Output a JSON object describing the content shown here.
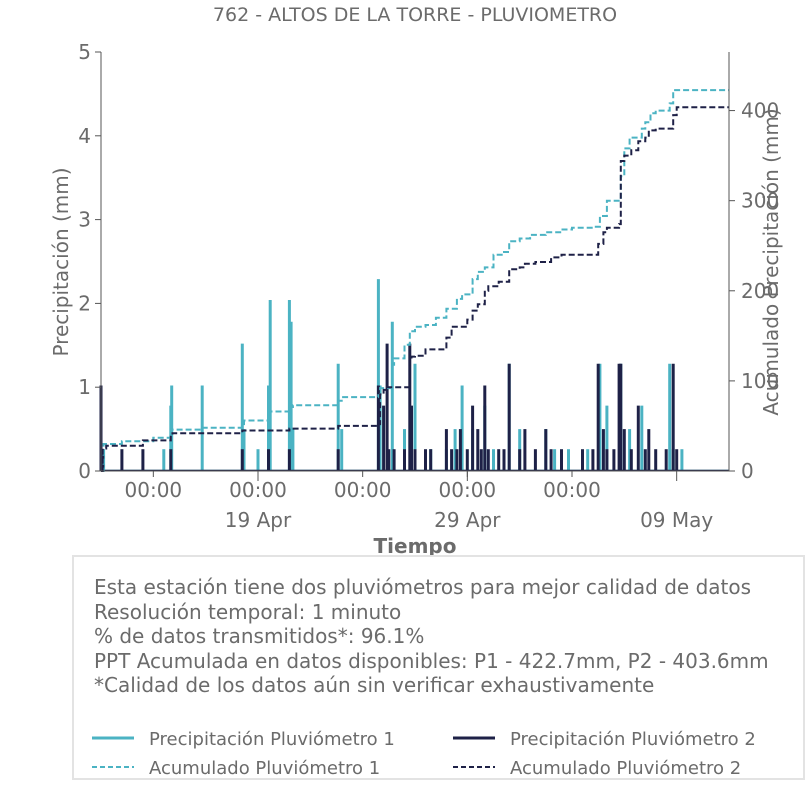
{
  "chart_data": {
    "type": "bar+line",
    "title": "762 - ALTOS DE LA TORRE - PLUVIOMETRO",
    "xlabel": "Tiempo",
    "ylabel_left": "Precipitación (mm)",
    "ylabel_right": "Acumulado Precipitación (mm)",
    "ylim_left": [
      0,
      5
    ],
    "ylim_right": [
      0,
      465
    ],
    "yticks_left": [
      "0",
      "1",
      "2",
      "3",
      "4",
      "5"
    ],
    "yticks_right": [
      "0",
      "100",
      "200",
      "300",
      "400"
    ],
    "x_range_days": [
      "2023-04-11T12:00",
      "2023-05-11T12:00"
    ],
    "x_time_ticks": [
      "00:00",
      "00:00",
      "00:00",
      "00:00",
      "00:00"
    ],
    "x_date_ticks": [
      "19 Apr",
      "29 Apr",
      "09 May"
    ],
    "series": [
      {
        "name": "Precipitación Pluviómetro 1",
        "kind": "bar",
        "color": "#4bb3c3",
        "points": [
          [
            "2023-04-11T15:00",
            0.26
          ],
          [
            "2023-04-14T12:00",
            0.26
          ],
          [
            "2023-04-14T20:00",
            0.78
          ],
          [
            "2023-04-14T21:00",
            1.02
          ],
          [
            "2023-04-16T08:00",
            1.02
          ],
          [
            "2023-04-18T06:00",
            1.52
          ],
          [
            "2023-04-18T08:00",
            0.5
          ],
          [
            "2023-04-19T00:00",
            0.26
          ],
          [
            "2023-04-19T12:00",
            1.02
          ],
          [
            "2023-04-19T14:00",
            2.04
          ],
          [
            "2023-04-20T12:00",
            2.04
          ],
          [
            "2023-04-20T14:00",
            1.78
          ],
          [
            "2023-04-20T16:00",
            0.5
          ],
          [
            "2023-04-22T20:00",
            1.28
          ],
          [
            "2023-04-23T00:00",
            0.5
          ],
          [
            "2023-04-24T18:00",
            2.29
          ],
          [
            "2023-04-24T20:00",
            1.02
          ],
          [
            "2023-04-25T10:00",
            1.78
          ],
          [
            "2023-04-26T00:00",
            0.5
          ],
          [
            "2023-04-26T12:00",
            1.28
          ],
          [
            "2023-04-27T06:00",
            0.26
          ],
          [
            "2023-04-28T00:00",
            0.26
          ],
          [
            "2023-04-28T10:00",
            0.5
          ],
          [
            "2023-04-28T18:00",
            1.02
          ],
          [
            "2023-04-29T06:00",
            0.5
          ],
          [
            "2023-04-29T20:00",
            0.78
          ],
          [
            "2023-04-30T06:00",
            0.26
          ],
          [
            "2023-05-01T00:00",
            1.28
          ],
          [
            "2023-05-01T12:00",
            0.5
          ],
          [
            "2023-05-02T18:00",
            0.5
          ],
          [
            "2023-05-03T04:00",
            0.26
          ],
          [
            "2023-05-03T20:00",
            0.26
          ],
          [
            "2023-05-04T18:00",
            0.26
          ],
          [
            "2023-05-05T08:00",
            1.28
          ],
          [
            "2023-05-05T16:00",
            0.78
          ],
          [
            "2023-05-06T08:00",
            1.28
          ],
          [
            "2023-05-06T18:00",
            0.5
          ],
          [
            "2023-05-07T08:00",
            0.78
          ],
          [
            "2023-05-08T16:00",
            1.28
          ],
          [
            "2023-05-08T20:00",
            0.26
          ],
          [
            "2023-05-09T06:00",
            0.26
          ]
        ]
      },
      {
        "name": "Precipitación Pluviómetro 2",
        "kind": "bar",
        "color": "#1e2147",
        "points": [
          [
            "2023-04-11T12:00",
            1.02
          ],
          [
            "2023-04-11T14:00",
            0.26
          ],
          [
            "2023-04-12T12:00",
            0.26
          ],
          [
            "2023-04-13T12:00",
            0.26
          ],
          [
            "2023-04-14T20:00",
            0.26
          ],
          [
            "2023-04-18T06:00",
            0.26
          ],
          [
            "2023-04-19T12:00",
            0.26
          ],
          [
            "2023-04-20T12:00",
            0.26
          ],
          [
            "2023-04-22T20:00",
            0.26
          ],
          [
            "2023-04-24T18:00",
            1.02
          ],
          [
            "2023-04-25T00:00",
            0.78
          ],
          [
            "2023-04-25T04:00",
            1.52
          ],
          [
            "2023-04-25T06:00",
            0.26
          ],
          [
            "2023-04-25T12:00",
            0.26
          ],
          [
            "2023-04-26T00:00",
            0.26
          ],
          [
            "2023-04-26T06:00",
            1.52
          ],
          [
            "2023-04-26T08:00",
            0.78
          ],
          [
            "2023-04-26T12:00",
            0.26
          ],
          [
            "2023-04-27T00:00",
            0.26
          ],
          [
            "2023-04-27T06:00",
            0.26
          ],
          [
            "2023-04-28T00:00",
            0.5
          ],
          [
            "2023-04-28T06:00",
            0.26
          ],
          [
            "2023-04-28T12:00",
            0.26
          ],
          [
            "2023-04-28T16:00",
            0.5
          ],
          [
            "2023-04-29T00:00",
            0.26
          ],
          [
            "2023-04-29T06:00",
            0.78
          ],
          [
            "2023-04-29T12:00",
            0.5
          ],
          [
            "2023-04-29T16:00",
            0.26
          ],
          [
            "2023-04-29T20:00",
            1.02
          ],
          [
            "2023-04-30T00:00",
            0.26
          ],
          [
            "2023-04-30T12:00",
            0.26
          ],
          [
            "2023-04-30T18:00",
            0.26
          ],
          [
            "2023-05-01T00:00",
            1.28
          ],
          [
            "2023-05-01T12:00",
            0.26
          ],
          [
            "2023-05-01T18:00",
            0.5
          ],
          [
            "2023-05-02T06:00",
            0.26
          ],
          [
            "2023-05-02T18:00",
            0.5
          ],
          [
            "2023-05-03T00:00",
            0.26
          ],
          [
            "2023-05-03T12:00",
            0.26
          ],
          [
            "2023-05-04T12:00",
            0.26
          ],
          [
            "2023-05-05T00:00",
            0.26
          ],
          [
            "2023-05-05T06:00",
            1.28
          ],
          [
            "2023-05-05T12:00",
            0.5
          ],
          [
            "2023-05-05T16:00",
            0.26
          ],
          [
            "2023-05-06T00:00",
            0.26
          ],
          [
            "2023-05-06T06:00",
            1.28
          ],
          [
            "2023-05-06T08:00",
            1.28
          ],
          [
            "2023-05-06T12:00",
            0.5
          ],
          [
            "2023-05-06T20:00",
            0.26
          ],
          [
            "2023-05-07T04:00",
            0.78
          ],
          [
            "2023-05-07T12:00",
            0.26
          ],
          [
            "2023-05-07T16:00",
            0.5
          ],
          [
            "2023-05-08T00:00",
            0.26
          ],
          [
            "2023-05-08T12:00",
            0.26
          ],
          [
            "2023-05-08T20:00",
            1.28
          ],
          [
            "2023-05-09T00:00",
            0.26
          ]
        ]
      },
      {
        "name": "Acumulado Pluviómetro 1",
        "kind": "line",
        "dash": true,
        "color": "#4bb3c3",
        "points": [
          [
            "2023-04-11T12:00",
            0
          ],
          [
            "2023-04-11T15:00",
            30
          ],
          [
            "2023-04-12T12:00",
            33
          ],
          [
            "2023-04-14T00:00",
            37
          ],
          [
            "2023-04-14T20:00",
            46
          ],
          [
            "2023-04-16T08:00",
            48
          ],
          [
            "2023-04-18T06:00",
            52
          ],
          [
            "2023-04-18T08:00",
            56
          ],
          [
            "2023-04-19T12:00",
            60
          ],
          [
            "2023-04-19T14:00",
            66
          ],
          [
            "2023-04-20T12:00",
            71
          ],
          [
            "2023-04-20T16:00",
            73
          ],
          [
            "2023-04-22T20:00",
            78
          ],
          [
            "2023-04-23T00:00",
            82
          ],
          [
            "2023-04-24T18:00",
            84
          ],
          [
            "2023-04-24T20:00",
            92
          ],
          [
            "2023-04-25T10:00",
            118
          ],
          [
            "2023-04-25T12:00",
            125
          ],
          [
            "2023-04-26T00:00",
            140
          ],
          [
            "2023-04-26T06:00",
            155
          ],
          [
            "2023-04-26T12:00",
            160
          ],
          [
            "2023-04-27T00:00",
            162
          ],
          [
            "2023-04-27T12:00",
            170
          ],
          [
            "2023-04-28T00:00",
            180
          ],
          [
            "2023-04-28T12:00",
            191
          ],
          [
            "2023-04-28T18:00",
            196
          ],
          [
            "2023-04-29T06:00",
            213
          ],
          [
            "2023-04-29T12:00",
            221
          ],
          [
            "2023-04-29T20:00",
            226
          ],
          [
            "2023-04-30T06:00",
            240
          ],
          [
            "2023-04-30T18:00",
            243
          ],
          [
            "2023-05-01T00:00",
            255
          ],
          [
            "2023-05-01T12:00",
            258
          ],
          [
            "2023-05-02T00:00",
            262
          ],
          [
            "2023-05-02T18:00",
            265
          ],
          [
            "2023-05-03T12:00",
            268
          ],
          [
            "2023-05-04T00:00",
            270
          ],
          [
            "2023-05-05T00:00",
            271
          ],
          [
            "2023-05-05T08:00",
            283
          ],
          [
            "2023-05-05T16:00",
            300
          ],
          [
            "2023-05-06T08:00",
            327
          ],
          [
            "2023-05-06T12:00",
            358
          ],
          [
            "2023-05-06T18:00",
            370
          ],
          [
            "2023-05-07T08:00",
            380
          ],
          [
            "2023-05-07T12:00",
            387
          ],
          [
            "2023-05-07T18:00",
            397
          ],
          [
            "2023-05-08T00:00",
            400
          ],
          [
            "2023-05-08T16:00",
            408
          ],
          [
            "2023-05-08T20:00",
            422.7
          ],
          [
            "2023-05-11T12:00",
            422.7
          ]
        ]
      },
      {
        "name": "Acumulado Pluviómetro 2",
        "kind": "line",
        "dash": true,
        "color": "#1e2147",
        "points": [
          [
            "2023-04-11T12:00",
            0
          ],
          [
            "2023-04-11T14:00",
            25
          ],
          [
            "2023-04-11T18:00",
            28
          ],
          [
            "2023-04-13T12:00",
            34
          ],
          [
            "2023-04-14T20:00",
            38
          ],
          [
            "2023-04-14T22:00",
            42
          ],
          [
            "2023-04-18T06:00",
            45
          ],
          [
            "2023-04-20T12:00",
            47
          ],
          [
            "2023-04-22T20:00",
            50
          ],
          [
            "2023-04-24T18:00",
            52
          ],
          [
            "2023-04-24T20:00",
            85
          ],
          [
            "2023-04-25T00:00",
            90
          ],
          [
            "2023-04-25T04:00",
            93
          ],
          [
            "2023-04-26T06:00",
            124
          ],
          [
            "2023-04-26T08:00",
            127
          ],
          [
            "2023-04-26T12:00",
            128
          ],
          [
            "2023-04-27T00:00",
            135
          ],
          [
            "2023-04-28T00:00",
            148
          ],
          [
            "2023-04-28T06:00",
            160
          ],
          [
            "2023-04-29T00:00",
            168
          ],
          [
            "2023-04-29T06:00",
            178
          ],
          [
            "2023-04-29T12:00",
            185
          ],
          [
            "2023-04-29T20:00",
            200
          ],
          [
            "2023-04-30T00:00",
            205
          ],
          [
            "2023-04-30T12:00",
            210
          ],
          [
            "2023-05-01T00:00",
            224
          ],
          [
            "2023-05-01T12:00",
            226
          ],
          [
            "2023-05-01T18:00",
            230
          ],
          [
            "2023-05-02T06:00",
            232
          ],
          [
            "2023-05-03T00:00",
            237
          ],
          [
            "2023-05-03T12:00",
            240
          ],
          [
            "2023-05-04T12:00",
            240
          ],
          [
            "2023-05-05T06:00",
            252
          ],
          [
            "2023-05-05T12:00",
            265
          ],
          [
            "2023-05-05T16:00",
            270
          ],
          [
            "2023-05-06T06:00",
            274
          ],
          [
            "2023-05-06T08:00",
            344
          ],
          [
            "2023-05-06T12:00",
            350
          ],
          [
            "2023-05-06T20:00",
            356
          ],
          [
            "2023-05-07T04:00",
            366
          ],
          [
            "2023-05-07T12:00",
            370
          ],
          [
            "2023-05-07T16:00",
            378
          ],
          [
            "2023-05-08T00:00",
            380
          ],
          [
            "2023-05-08T20:00",
            395
          ],
          [
            "2023-05-09T00:00",
            403.6
          ],
          [
            "2023-05-11T12:00",
            403.6
          ]
        ]
      }
    ]
  },
  "info": {
    "line1": "Esta estación tiene dos pluviómetros para mejor calidad de datos",
    "line2": "Resolución temporal: 1 minuto",
    "line3": "% de datos transmitidos*: 96.1%",
    "line4": "PPT Acumulada en datos disponibles: P1 - 422.7mm, P2 - 403.6mm",
    "line5": "*Calidad de los datos aún sin verificar exhaustivamente"
  },
  "legend": {
    "item1": "Precipitación Pluviómetro 1",
    "item2": "Precipitación Pluviómetro 2",
    "item3": "Acumulado Pluviómetro 1",
    "item4": "Acumulado Pluviómetro 2"
  },
  "colors": {
    "pluvio1": "#4bb3c3",
    "pluvio2": "#1e2147",
    "text": "#6b6b6b",
    "axis": "#555555",
    "box_border": "#e3e3e3"
  }
}
